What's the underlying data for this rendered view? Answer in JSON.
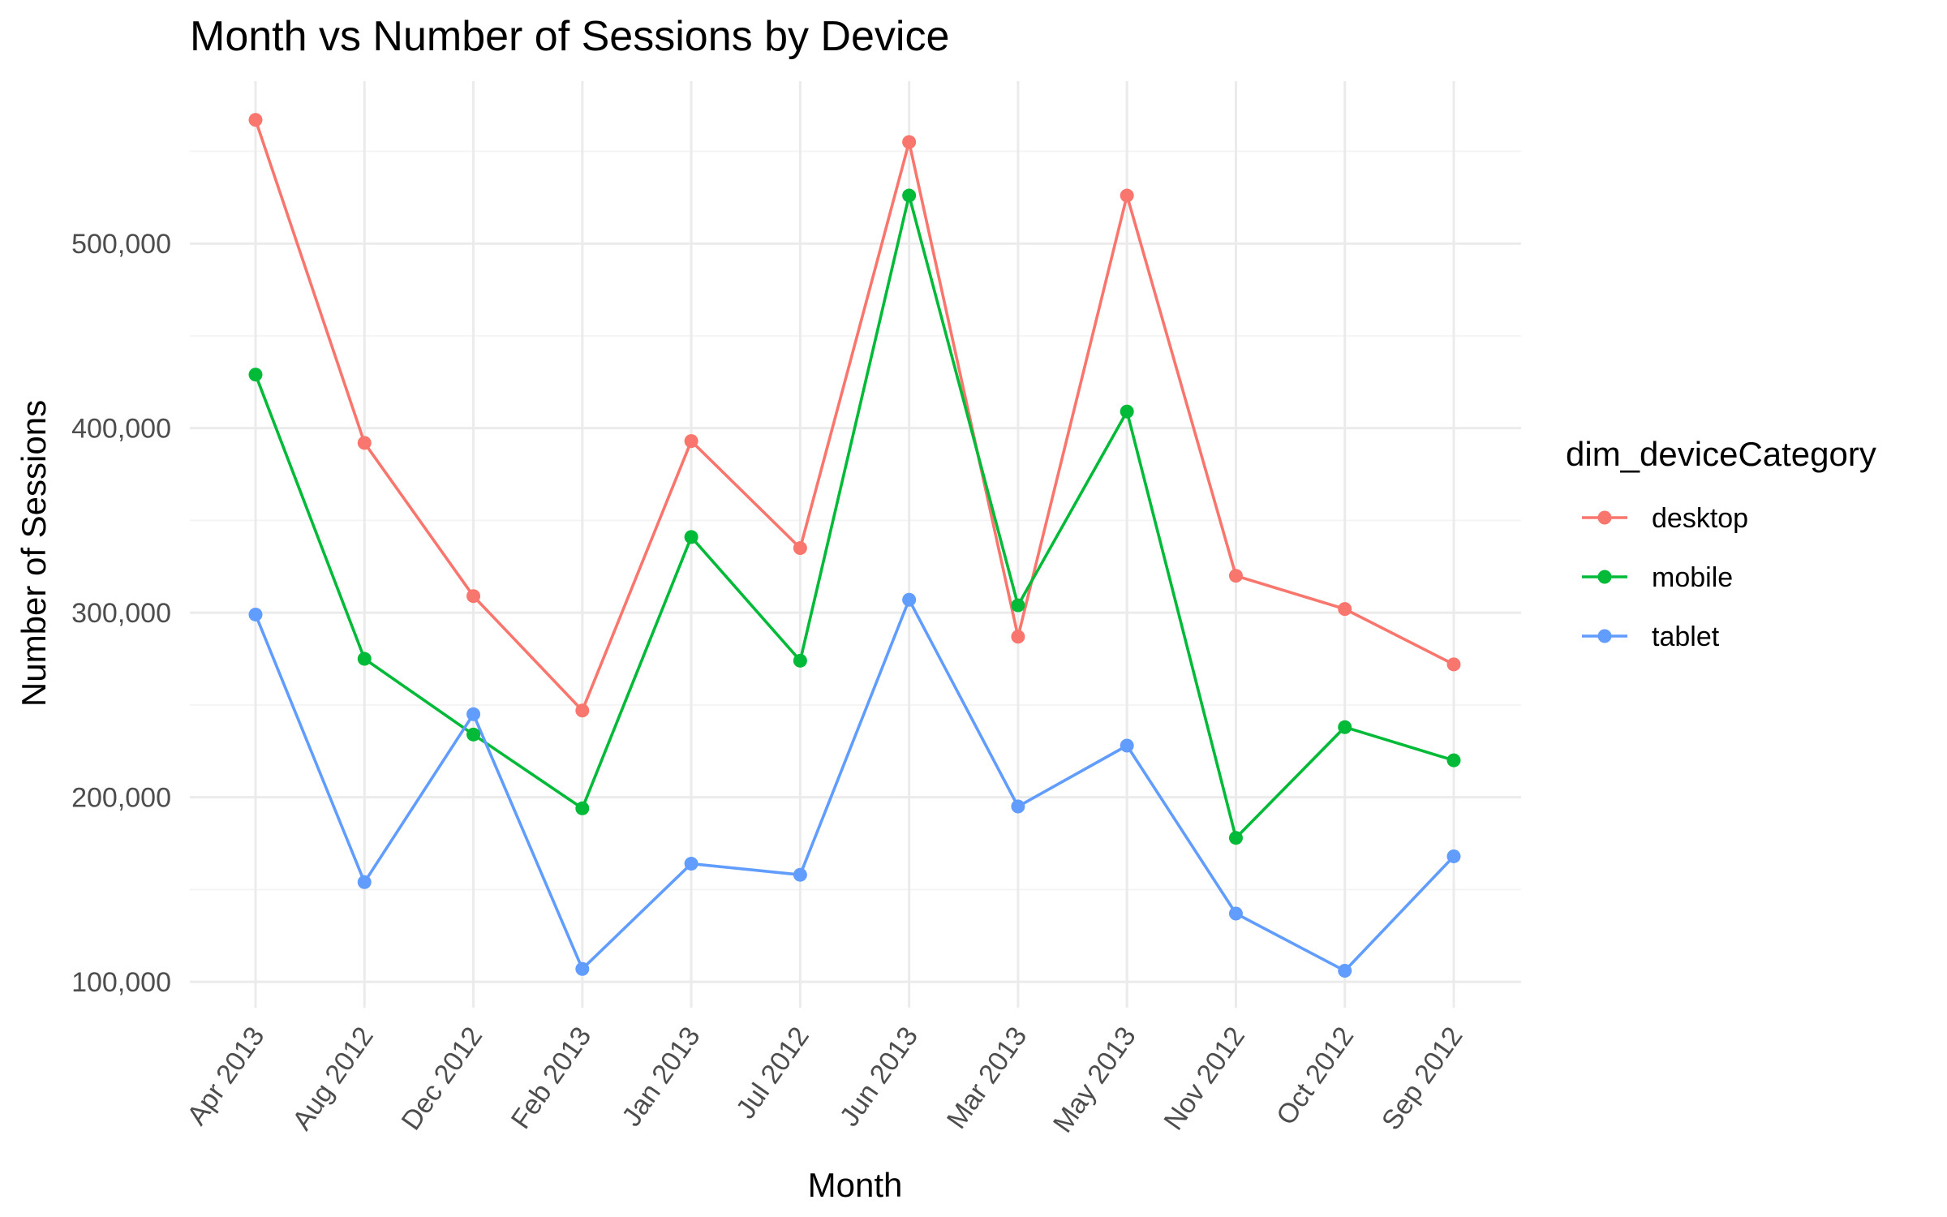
{
  "chart_data": {
    "type": "line",
    "title": "Month vs Number of Sessions by Device",
    "xlabel": "Month",
    "ylabel": "Number of Sessions",
    "categories": [
      "Apr 2013",
      "Aug 2012",
      "Dec 2012",
      "Feb 2013",
      "Jan 2013",
      "Jul 2012",
      "Jun 2013",
      "Mar 2013",
      "May 2013",
      "Nov 2012",
      "Oct 2012",
      "Sep 2012"
    ],
    "yticks": [
      100000,
      200000,
      300000,
      400000,
      500000
    ],
    "ytick_labels": [
      "100,000",
      "200,000",
      "300,000",
      "400,000",
      "500,000"
    ],
    "ylim": [
      86000,
      588000
    ],
    "grid": true,
    "legend": {
      "title": "dim_deviceCategory",
      "position": "right"
    },
    "series": [
      {
        "name": "desktop",
        "color": "#F8766D",
        "values": [
          567000,
          392000,
          309000,
          247000,
          393000,
          335000,
          555000,
          287000,
          526000,
          320000,
          302000,
          272000
        ]
      },
      {
        "name": "mobile",
        "color": "#00BA38",
        "values": [
          429000,
          275000,
          234000,
          194000,
          341000,
          274000,
          526000,
          304000,
          409000,
          178000,
          238000,
          220000
        ]
      },
      {
        "name": "tablet",
        "color": "#619CFF",
        "values": [
          299000,
          154000,
          245000,
          107000,
          164000,
          158000,
          307000,
          195000,
          228000,
          137000,
          106000,
          168000
        ]
      }
    ]
  }
}
